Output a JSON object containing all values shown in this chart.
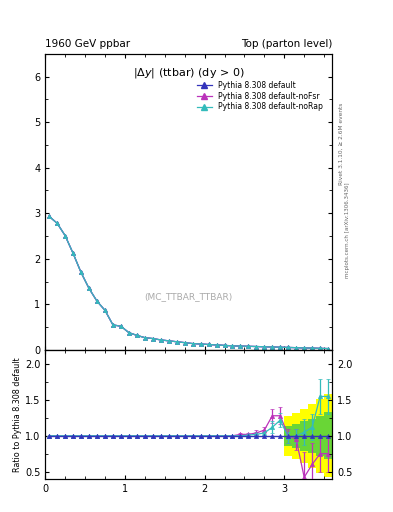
{
  "title_left": "1960 GeV ppbar",
  "title_right": "Top (parton level)",
  "ratio_ylabel": "Ratio to Pythia 8.308 default",
  "right_label_top": "Rivet 3.1.10, ≥ 2.6M events",
  "right_label_bot": "mcplots.cern.ch [arXiv:1306.3436]",
  "watermark": "(MC_TTBAR_TTBAR)",
  "x_data": [
    0.05,
    0.15,
    0.25,
    0.35,
    0.45,
    0.55,
    0.65,
    0.75,
    0.85,
    0.95,
    1.05,
    1.15,
    1.25,
    1.35,
    1.45,
    1.55,
    1.65,
    1.75,
    1.85,
    1.95,
    2.05,
    2.15,
    2.25,
    2.35,
    2.45,
    2.55,
    2.65,
    2.75,
    2.85,
    2.95,
    3.05,
    3.15,
    3.25,
    3.35,
    3.45,
    3.55
  ],
  "y_default": [
    2.93,
    2.78,
    2.51,
    2.12,
    1.7,
    1.35,
    1.07,
    0.87,
    0.55,
    0.52,
    0.38,
    0.32,
    0.27,
    0.25,
    0.22,
    0.2,
    0.18,
    0.16,
    0.14,
    0.13,
    0.12,
    0.11,
    0.1,
    0.09,
    0.085,
    0.08,
    0.075,
    0.07,
    0.065,
    0.06,
    0.055,
    0.05,
    0.045,
    0.04,
    0.035,
    0.03
  ],
  "y_nofsr": [
    2.93,
    2.78,
    2.51,
    2.12,
    1.7,
    1.35,
    1.07,
    0.87,
    0.55,
    0.52,
    0.38,
    0.32,
    0.27,
    0.25,
    0.22,
    0.2,
    0.18,
    0.16,
    0.14,
    0.13,
    0.12,
    0.11,
    0.1,
    0.09,
    0.085,
    0.08,
    0.075,
    0.07,
    0.065,
    0.06,
    0.055,
    0.05,
    0.045,
    0.04,
    0.035,
    0.03
  ],
  "y_norap": [
    2.93,
    2.78,
    2.51,
    2.12,
    1.7,
    1.35,
    1.07,
    0.87,
    0.55,
    0.52,
    0.38,
    0.32,
    0.27,
    0.25,
    0.22,
    0.2,
    0.18,
    0.16,
    0.14,
    0.13,
    0.12,
    0.11,
    0.1,
    0.09,
    0.085,
    0.08,
    0.075,
    0.07,
    0.065,
    0.06,
    0.055,
    0.05,
    0.045,
    0.04,
    0.035,
    0.03
  ],
  "ratio_default": [
    1.0,
    1.0,
    1.0,
    1.0,
    1.0,
    1.0,
    1.0,
    1.0,
    1.0,
    1.0,
    1.0,
    1.0,
    1.0,
    1.0,
    1.0,
    1.0,
    1.0,
    1.0,
    1.0,
    1.0,
    1.0,
    1.0,
    1.0,
    1.0,
    1.0,
    1.0,
    1.0,
    1.0,
    1.0,
    1.0,
    1.0,
    1.0,
    1.0,
    1.0,
    1.0,
    1.0
  ],
  "ratio_nofsr": [
    1.0,
    1.0,
    1.0,
    1.0,
    1.0,
    1.0,
    1.0,
    1.0,
    1.0,
    1.0,
    1.0,
    1.0,
    1.0,
    1.0,
    1.0,
    1.0,
    1.0,
    1.0,
    1.0,
    1.0,
    1.0,
    1.0,
    1.0,
    1.0,
    1.02,
    1.02,
    1.04,
    1.08,
    1.28,
    1.28,
    1.0,
    0.95,
    0.42,
    0.6,
    0.75,
    0.75
  ],
  "ratio_norap": [
    1.0,
    1.0,
    1.0,
    1.0,
    1.0,
    1.0,
    1.0,
    1.0,
    1.0,
    1.0,
    1.0,
    1.0,
    1.0,
    1.0,
    1.0,
    1.0,
    1.0,
    1.0,
    1.0,
    1.0,
    1.0,
    1.0,
    1.0,
    1.0,
    1.0,
    1.01,
    1.02,
    1.04,
    1.12,
    1.22,
    0.98,
    1.0,
    1.05,
    1.12,
    1.55,
    1.55
  ],
  "ratio_nofsr_err": [
    0.0,
    0.0,
    0.0,
    0.0,
    0.0,
    0.0,
    0.0,
    0.0,
    0.0,
    0.0,
    0.0,
    0.0,
    0.0,
    0.0,
    0.0,
    0.0,
    0.0,
    0.0,
    0.0,
    0.0,
    0.0,
    0.0,
    0.0,
    0.0,
    0.02,
    0.02,
    0.04,
    0.04,
    0.1,
    0.12,
    0.1,
    0.15,
    0.35,
    0.3,
    0.25,
    0.25
  ],
  "ratio_norap_err": [
    0.0,
    0.0,
    0.0,
    0.0,
    0.0,
    0.0,
    0.0,
    0.0,
    0.0,
    0.0,
    0.0,
    0.0,
    0.0,
    0.0,
    0.0,
    0.0,
    0.0,
    0.0,
    0.0,
    0.0,
    0.0,
    0.0,
    0.0,
    0.0,
    0.02,
    0.02,
    0.03,
    0.04,
    0.08,
    0.1,
    0.08,
    0.1,
    0.18,
    0.18,
    0.25,
    0.25
  ],
  "band_x_edges": [
    3.0,
    3.1,
    3.2,
    3.3,
    3.4,
    3.5,
    3.6
  ],
  "band_yellow_lo": [
    0.72,
    0.68,
    0.62,
    0.55,
    0.48,
    0.42,
    0.35
  ],
  "band_yellow_hi": [
    1.28,
    1.32,
    1.38,
    1.45,
    1.52,
    1.58,
    2.1
  ],
  "band_green_lo": [
    0.86,
    0.83,
    0.79,
    0.76,
    0.72,
    0.67,
    0.52
  ],
  "band_green_hi": [
    1.14,
    1.17,
    1.21,
    1.24,
    1.28,
    1.33,
    1.68
  ],
  "color_default": "#3333bb",
  "color_nofsr": "#bb33bb",
  "color_norap": "#33bbbb",
  "color_yellow": "#ffff00",
  "color_green": "#44cc44",
  "xlim": [
    0,
    3.6
  ],
  "main_ylim": [
    0,
    6.5
  ],
  "ratio_ylim": [
    0.4,
    2.2
  ],
  "main_yticks": [
    0,
    1,
    2,
    3,
    4,
    5,
    6
  ],
  "ratio_yticks": [
    0.5,
    1.0,
    1.5,
    2.0
  ],
  "xticks": [
    0,
    1,
    2,
    3
  ]
}
